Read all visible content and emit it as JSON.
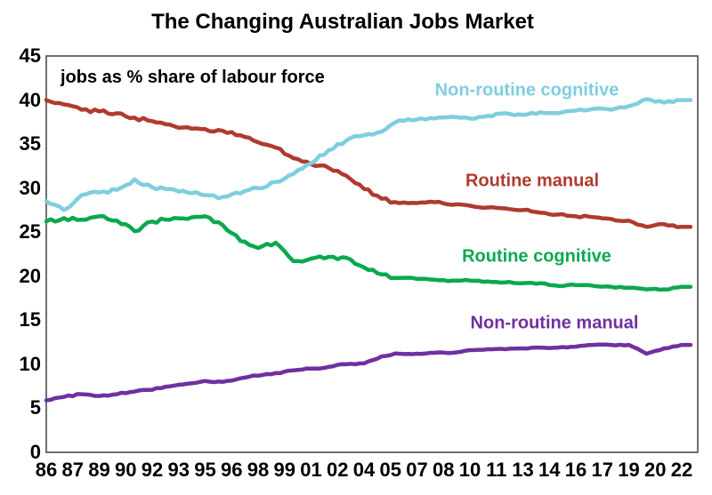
{
  "chart_data": {
    "type": "line",
    "title": "The Changing Australian Jobs Market",
    "annotation": "jobs as % share of labour force",
    "xlabel": "",
    "ylabel": "jobs as % share of labour force",
    "ylim": [
      0,
      45
    ],
    "y_ticks": [
      45,
      40,
      35,
      30,
      25,
      20,
      15,
      10,
      5,
      0
    ],
    "grid": false,
    "legend_position": "inline-labels-on-chart",
    "x_years": [
      1986,
      1987,
      1988,
      1989,
      1990,
      1991,
      1992,
      1993,
      1994,
      1995,
      1996,
      1997,
      1998,
      1999,
      2000,
      2001,
      2002,
      2003,
      2004,
      2005,
      2006,
      2007,
      2008,
      2009,
      2010,
      2011,
      2012,
      2013,
      2014,
      2015,
      2016,
      2017,
      2018,
      2019,
      2020,
      2021,
      2022
    ],
    "x_tick_labels": [
      "86",
      "87",
      "89",
      "90",
      "92",
      "93",
      "95",
      "96",
      "98",
      "99",
      "01",
      "02",
      "04",
      "05",
      "07",
      "08",
      "10",
      "11",
      "13",
      "14",
      "16",
      "17",
      "19",
      "20",
      "22"
    ],
    "series": [
      {
        "name": "Non-routine cognitive",
        "color": "#7FCEDF",
        "values": [
          28.5,
          27.5,
          29.2,
          29.5,
          29.8,
          31.0,
          30.1,
          29.9,
          29.5,
          29.2,
          29.0,
          29.4,
          30.0,
          30.7,
          31.6,
          32.8,
          34.3,
          35.4,
          36.0,
          36.4,
          37.7,
          37.8,
          37.9,
          38.1,
          37.9,
          38.2,
          38.5,
          38.3,
          38.6,
          38.5,
          38.8,
          39.0,
          38.9,
          39.3,
          40.1,
          39.7,
          40.0
        ]
      },
      {
        "name": "Routine manual",
        "color": "#B03A2E",
        "values": [
          40.0,
          39.5,
          38.9,
          38.7,
          38.5,
          38.0,
          37.6,
          37.2,
          36.9,
          36.7,
          36.5,
          36.0,
          35.2,
          34.6,
          33.4,
          32.7,
          32.3,
          31.4,
          29.9,
          28.8,
          28.3,
          28.3,
          28.4,
          28.1,
          28.0,
          27.8,
          27.7,
          27.5,
          27.2,
          27.0,
          26.8,
          26.7,
          26.5,
          26.3,
          25.6,
          25.9,
          25.6
        ]
      },
      {
        "name": "Routine cognitive",
        "color": "#0CA84F",
        "values": [
          26.2,
          26.6,
          26.4,
          26.8,
          26.3,
          25.1,
          26.2,
          26.4,
          26.5,
          26.8,
          25.8,
          24.0,
          23.2,
          23.8,
          21.7,
          22.0,
          22.2,
          22.1,
          21.0,
          20.2,
          19.8,
          19.7,
          19.6,
          19.5,
          19.5,
          19.4,
          19.3,
          19.2,
          19.2,
          18.9,
          19.0,
          18.9,
          18.8,
          18.7,
          18.5,
          18.5,
          18.8
        ]
      },
      {
        "name": "Non-routine manual",
        "color": "#7030A0",
        "values": [
          5.9,
          6.3,
          6.6,
          6.4,
          6.6,
          6.9,
          7.1,
          7.5,
          7.8,
          8.1,
          8.0,
          8.4,
          8.7,
          9.0,
          9.3,
          9.5,
          9.7,
          10.0,
          10.1,
          10.9,
          11.2,
          11.2,
          11.3,
          11.3,
          11.6,
          11.7,
          11.7,
          11.8,
          11.9,
          11.9,
          12.0,
          12.2,
          12.2,
          12.2,
          11.2,
          11.8,
          12.2
        ]
      }
    ]
  },
  "colors": {
    "background": "#FFFFFF",
    "text": "#000000",
    "axis_border": "#4D4D4D",
    "non_routine_cognitive": "#7FCEDF",
    "routine_manual": "#B03A2E",
    "routine_cognitive": "#0CA84F",
    "non_routine_manual": "#7030A0"
  }
}
